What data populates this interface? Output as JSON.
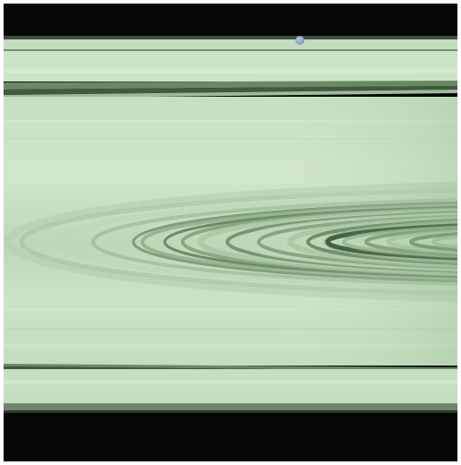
{
  "image": {
    "subject": "",
    "colors": {
      "space": "#050607",
      "ring_base": "#c9e2c6",
      "ring_light": "#d9ecd5",
      "ring_mid": "#b5d2b0",
      "ring_dark": "#5e7e5a",
      "ring_deep": "#2e4a2c",
      "moon": "#8fa8c4"
    }
  }
}
